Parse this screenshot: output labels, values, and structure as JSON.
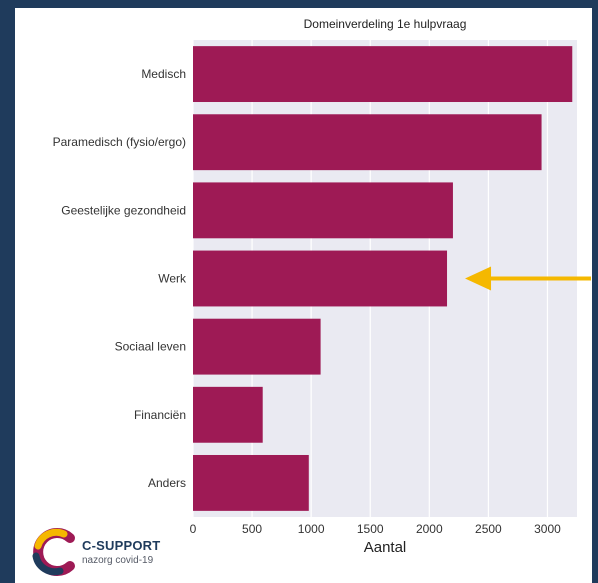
{
  "chart_data": {
    "type": "bar",
    "orientation": "horizontal",
    "title": "Domeinverdeling 1e hulpvraag",
    "xlabel": "Aantal",
    "ylabel": "",
    "categories": [
      "Medisch",
      "Paramedisch (fysio/ergo)",
      "Geestelijke gezondheid",
      "Werk",
      "Sociaal leven",
      "Financiën",
      "Anders"
    ],
    "values": [
      3210,
      2950,
      2200,
      2150,
      1080,
      590,
      980
    ],
    "xlim": [
      0,
      3250
    ],
    "xticks": [
      0,
      500,
      1000,
      1500,
      2000,
      2500,
      3000
    ],
    "grid": true,
    "bar_color": "#9e1a55",
    "plot_background": "#eaeaf2",
    "annotation": {
      "type": "arrow",
      "points_to": "Werk",
      "color": "#f5b800"
    }
  },
  "logo": {
    "name": "C-SUPPORT",
    "subtitle": "nazorg covid-19",
    "colors": [
      "#1f3b5c",
      "#9e1a55",
      "#f5b800"
    ]
  }
}
